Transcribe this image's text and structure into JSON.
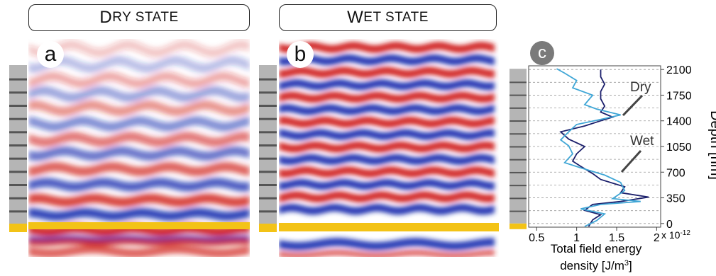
{
  "panel_a": {
    "title_first": "D",
    "title_rest": "RY STATE",
    "label": "a"
  },
  "panel_b": {
    "title_first": "W",
    "title_rest": "ET STATE",
    "label": "b"
  },
  "panel_c": {
    "label": "c"
  },
  "colors": {
    "red": "#d0201a",
    "blue": "#1a2fb0",
    "gold": "#f3c316",
    "gray_layer": "#b5b5b5",
    "dry_line": "#1b1f6b",
    "wet_line": "#3fa6d6"
  },
  "chart_data": {
    "type": "line",
    "xlabel_line1": "Total field energy",
    "xlabel_line2": "density [J/m",
    "xlabel_sup": "3",
    "xlabel_end": "]",
    "ylabel": "Depth [nm]",
    "x_ticks": [
      "0.5",
      "1",
      "1.5",
      "2"
    ],
    "x_tick_values": [
      0.5,
      1,
      1.5,
      2
    ],
    "x_multiplier": "x 10",
    "x_multiplier_exp": "-12",
    "y_ticks": [
      "0",
      "350",
      "700",
      "1050",
      "1400",
      "1750",
      "2100"
    ],
    "y_tick_values": [
      0,
      350,
      700,
      1050,
      1400,
      1750,
      2100
    ],
    "xlim": [
      0.4,
      2.05
    ],
    "ylim": [
      -50,
      2150
    ],
    "annotations": {
      "dry": "Dry",
      "wet": "Wet"
    },
    "series": [
      {
        "name": "Dry",
        "points": [
          [
            1.15,
            -40
          ],
          [
            1.2,
            50
          ],
          [
            1.3,
            120
          ],
          [
            1.1,
            180
          ],
          [
            1.2,
            260
          ],
          [
            1.55,
            300
          ],
          [
            1.9,
            360
          ],
          [
            1.55,
            420
          ],
          [
            1.6,
            500
          ],
          [
            1.3,
            600
          ],
          [
            1.2,
            680
          ],
          [
            1.05,
            780
          ],
          [
            0.95,
            850
          ],
          [
            1.0,
            950
          ],
          [
            1.1,
            1050
          ],
          [
            0.9,
            1150
          ],
          [
            0.8,
            1250
          ],
          [
            1.1,
            1330
          ],
          [
            1.3,
            1400
          ],
          [
            1.45,
            1450
          ],
          [
            1.3,
            1520
          ],
          [
            1.35,
            1600
          ],
          [
            1.3,
            1700
          ],
          [
            1.3,
            1800
          ],
          [
            1.35,
            1900
          ],
          [
            1.3,
            2000
          ],
          [
            1.3,
            2100
          ]
        ]
      },
      {
        "name": "Wet",
        "points": [
          [
            1.1,
            -40
          ],
          [
            1.25,
            40
          ],
          [
            1.35,
            130
          ],
          [
            1.05,
            200
          ],
          [
            1.3,
            260
          ],
          [
            1.8,
            300
          ],
          [
            1.45,
            340
          ],
          [
            1.6,
            450
          ],
          [
            1.55,
            560
          ],
          [
            1.35,
            660
          ],
          [
            1.05,
            760
          ],
          [
            0.85,
            830
          ],
          [
            0.95,
            950
          ],
          [
            0.9,
            1060
          ],
          [
            0.8,
            1140
          ],
          [
            0.9,
            1250
          ],
          [
            1.0,
            1350
          ],
          [
            1.3,
            1420
          ],
          [
            1.55,
            1480
          ],
          [
            1.25,
            1560
          ],
          [
            1.1,
            1620
          ],
          [
            1.2,
            1750
          ],
          [
            0.95,
            1850
          ],
          [
            1.0,
            1950
          ],
          [
            0.85,
            2050
          ],
          [
            0.75,
            2110
          ]
        ]
      }
    ]
  }
}
